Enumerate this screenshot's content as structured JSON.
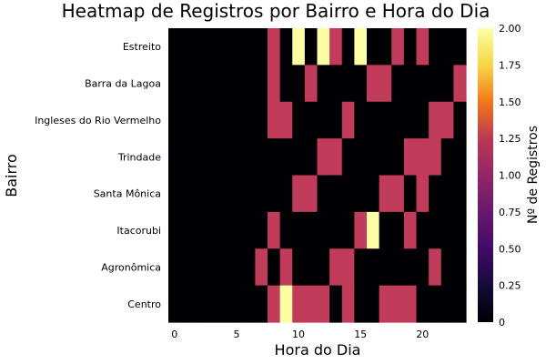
{
  "chart_data": {
    "type": "heatmap",
    "title": "Heatmap de Registros por Bairro e Hora do Dia",
    "xlabel": "Hora do Dia",
    "ylabel": "Bairro",
    "colorbar_label": "Nº de Registros",
    "x": [
      0,
      1,
      2,
      3,
      4,
      5,
      6,
      7,
      8,
      9,
      10,
      11,
      12,
      13,
      14,
      15,
      16,
      17,
      18,
      19,
      20,
      21,
      22,
      23
    ],
    "x_ticks": [
      0,
      5,
      10,
      15,
      20
    ],
    "y_categories": [
      "Estreito",
      "Barra da Lagoa",
      "Ingleses do Rio Vermelho",
      "Trindade",
      "Santa Mônica",
      "Itacorubi",
      "Agronômica",
      "Centro"
    ],
    "colorbar_ticks": [
      "2.00",
      "1.75",
      "1.50",
      "1.25",
      "1.00",
      "0.75",
      "0.50",
      "0.25",
      "0"
    ],
    "zlim": [
      0,
      2
    ],
    "colormap": "inferno",
    "grid": false,
    "values": [
      [
        0,
        0,
        0,
        0,
        0,
        0,
        0,
        0,
        1,
        0,
        2,
        0,
        2,
        1,
        0,
        2,
        0,
        0,
        1,
        0,
        1,
        0,
        0,
        0
      ],
      [
        0,
        0,
        0,
        0,
        0,
        0,
        0,
        0,
        1,
        0,
        0,
        1,
        0,
        0,
        0,
        0,
        1,
        1,
        0,
        0,
        0,
        0,
        0,
        1
      ],
      [
        0,
        0,
        0,
        0,
        0,
        0,
        0,
        0,
        1,
        1,
        0,
        0,
        0,
        0,
        1,
        0,
        0,
        0,
        0,
        0,
        0,
        1,
        1,
        0
      ],
      [
        0,
        0,
        0,
        0,
        0,
        0,
        0,
        0,
        0,
        0,
        0,
        0,
        1,
        1,
        0,
        0,
        0,
        0,
        0,
        1,
        1,
        1,
        0,
        0
      ],
      [
        0,
        0,
        0,
        0,
        0,
        0,
        0,
        0,
        0,
        0,
        1,
        1,
        0,
        0,
        0,
        0,
        0,
        1,
        1,
        0,
        1,
        0,
        0,
        0
      ],
      [
        0,
        0,
        0,
        0,
        0,
        0,
        0,
        0,
        1,
        0,
        0,
        0,
        0,
        0,
        0,
        1,
        2,
        0,
        0,
        1,
        0,
        0,
        0,
        0
      ],
      [
        0,
        0,
        0,
        0,
        0,
        0,
        0,
        1,
        0,
        1,
        0,
        0,
        0,
        1,
        1,
        0,
        0,
        0,
        0,
        0,
        0,
        1,
        0,
        0
      ],
      [
        0,
        0,
        0,
        0,
        0,
        0,
        0,
        0,
        1,
        2,
        1,
        1,
        1,
        0,
        1,
        0,
        0,
        1,
        1,
        1,
        0,
        0,
        0,
        0
      ]
    ]
  }
}
